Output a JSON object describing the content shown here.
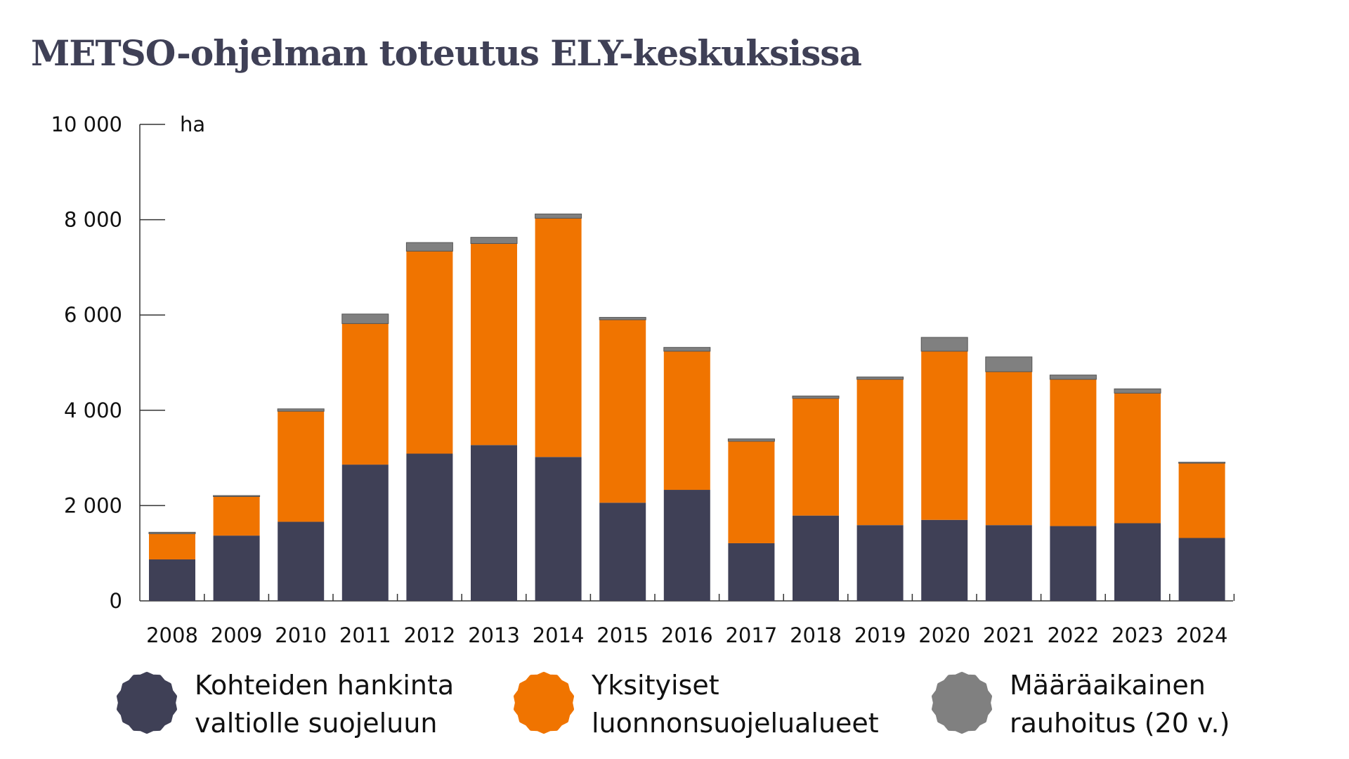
{
  "chart_data": {
    "type": "bar",
    "stacked": true,
    "title": "METSO-ohjelman toteutus ELY-keskuksissa",
    "ylabel": "ha",
    "ylim": [
      0,
      10000
    ],
    "yticks": [
      0,
      2000,
      4000,
      6000,
      8000,
      10000
    ],
    "ytick_labels": [
      "0",
      "2 000",
      "4 000",
      "6 000",
      "8 000",
      "10 000"
    ],
    "grid": false,
    "legend_position": "bottom",
    "categories": [
      "2008",
      "2009",
      "2010",
      "2011",
      "2012",
      "2013",
      "2014",
      "2015",
      "2016",
      "2017",
      "2018",
      "2019",
      "2020",
      "2021",
      "2022",
      "2023",
      "2024"
    ],
    "series": [
      {
        "name": "Kohteiden hankinta valtiolle suojeluun",
        "name_lines": [
          "Kohteiden hankinta",
          "valtiolle suojeluun"
        ],
        "color": "#3f4056",
        "values": [
          870,
          1370,
          1660,
          2860,
          3090,
          3270,
          3020,
          2060,
          2330,
          1210,
          1790,
          1590,
          1700,
          1590,
          1570,
          1630,
          1320
        ]
      },
      {
        "name": "Yksityiset luonnonsuojelualueet",
        "name_lines": [
          "Yksityiset",
          "luonnonsuojelualueet"
        ],
        "color": "#f07400",
        "values": [
          540,
          820,
          2320,
          2960,
          4250,
          4230,
          5010,
          3840,
          2910,
          2140,
          2460,
          3060,
          3540,
          3220,
          3080,
          2730,
          1570
        ]
      },
      {
        "name": "Määräaikainen rauhoitus (20 v.)",
        "name_lines": [
          "Määräaikainen",
          "rauhoitus (20 v.)"
        ],
        "color": "#808080",
        "values": [
          30,
          20,
          50,
          200,
          180,
          130,
          90,
          50,
          80,
          50,
          50,
          50,
          290,
          310,
          90,
          90,
          20
        ]
      }
    ]
  }
}
